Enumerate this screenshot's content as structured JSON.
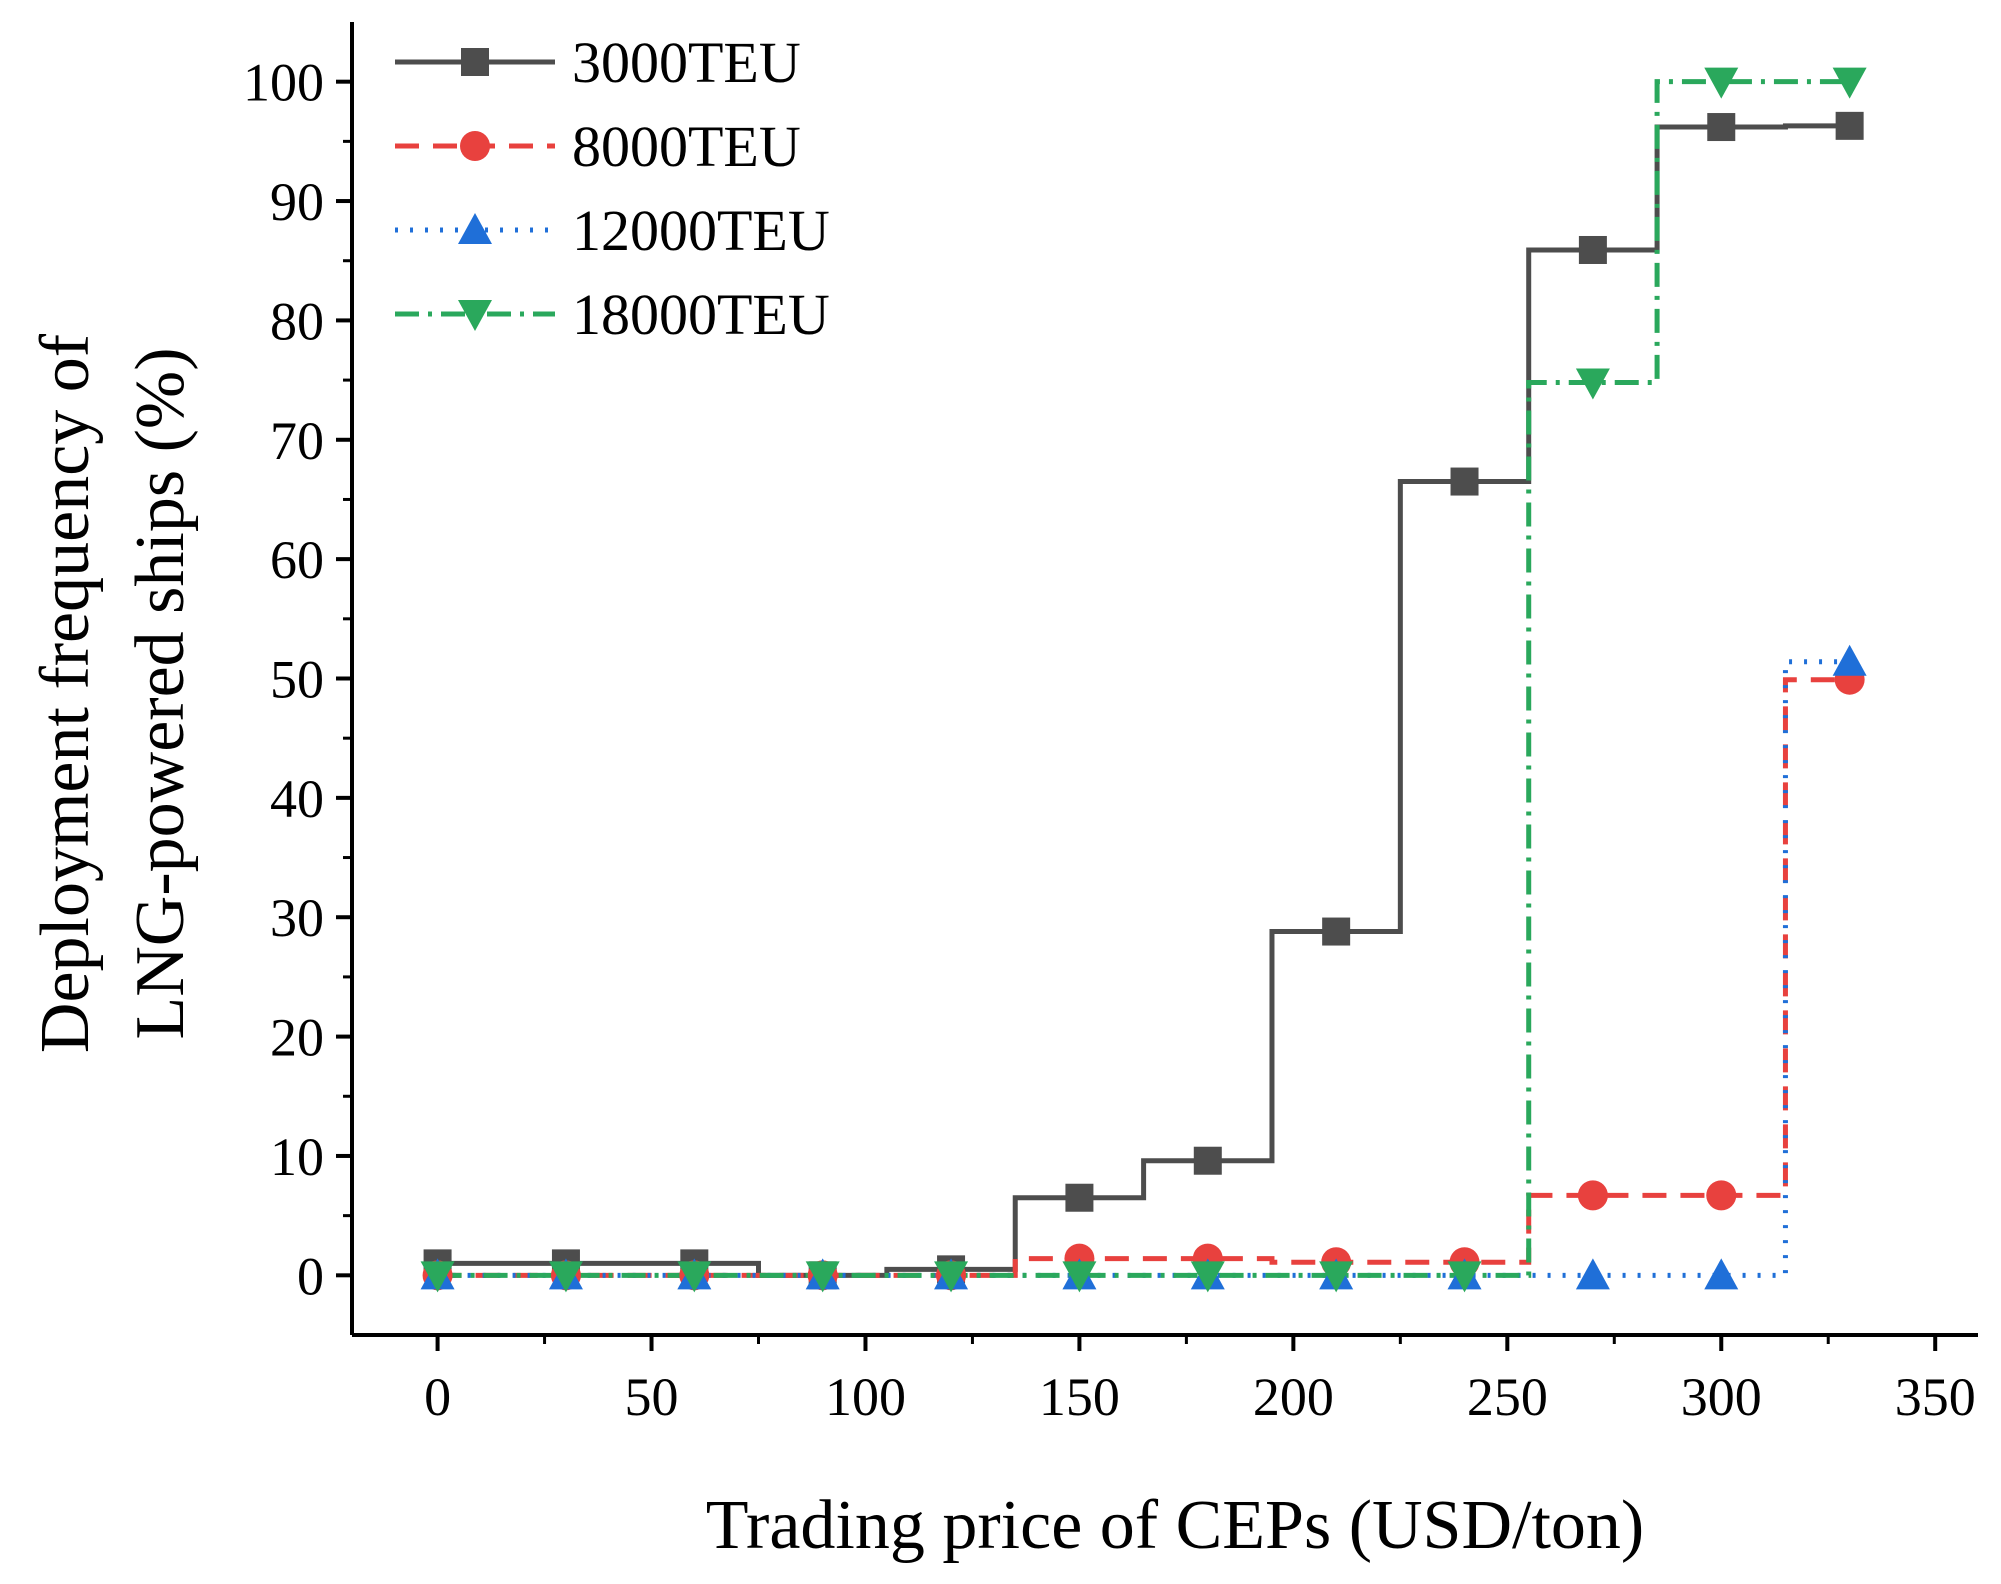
{
  "chart_data": {
    "type": "line",
    "step": true,
    "xlabel": "Trading price of CEPs (USD/ton)",
    "ylabel_lines": [
      "Deployment frequency of",
      "LNG-powered ships (%)"
    ],
    "xlim": [
      -20,
      360
    ],
    "ylim": [
      -5,
      105
    ],
    "xticks": [
      0,
      50,
      100,
      150,
      200,
      250,
      300,
      350
    ],
    "yticks": [
      0,
      10,
      20,
      30,
      40,
      50,
      60,
      70,
      80,
      90,
      100
    ],
    "x": [
      0,
      30,
      60,
      90,
      120,
      150,
      180,
      210,
      240,
      270,
      300,
      330
    ],
    "series": [
      {
        "name": "3000TEU",
        "color": "#4d4d4d",
        "marker": "square",
        "dash": "",
        "values": [
          1,
          1,
          1,
          0,
          0.5,
          6.5,
          9.6,
          28.8,
          66.5,
          85.9,
          96.2,
          96.3
        ]
      },
      {
        "name": "8000TEU",
        "color": "#e8413e",
        "marker": "circle",
        "dash": "24 14",
        "values": [
          0,
          0,
          0,
          0,
          0,
          1.4,
          1.4,
          1.1,
          1.1,
          6.7,
          6.7,
          49.9
        ]
      },
      {
        "name": "12000TEU",
        "color": "#1f6fd8",
        "marker": "triangle-up",
        "dash": "3 12",
        "values": [
          0,
          0,
          0,
          0,
          0,
          0,
          0,
          0,
          0,
          0,
          0,
          51.4
        ]
      },
      {
        "name": "18000TEU",
        "color": "#2aa85c",
        "marker": "triangle-down",
        "dash": "24 9 4 9",
        "values": [
          0,
          0,
          0,
          0,
          0,
          0,
          0,
          0,
          0,
          74.8,
          100,
          100
        ]
      }
    ]
  }
}
